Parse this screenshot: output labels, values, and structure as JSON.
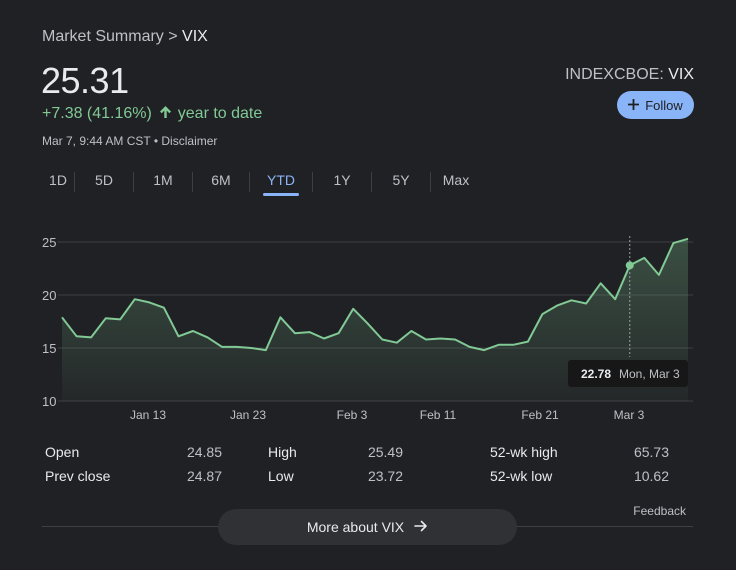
{
  "breadcrumb": {
    "parent": "Market Summary",
    "separator": ">",
    "current": "VIX"
  },
  "quote": {
    "price": "25.31",
    "change": "+7.38 (41.16%)",
    "period": "year to date",
    "timestamp": "Mar 7, 9:44 AM CST",
    "disclaimer": "Disclaimer",
    "exchange": "INDEXCBOE",
    "symbol": "VIX",
    "follow_label": "Follow"
  },
  "colors": {
    "accent": "#8ab4f8",
    "positive": "#81c995",
    "background": "#202124"
  },
  "tabs": [
    {
      "label": "1D",
      "active": false
    },
    {
      "label": "5D",
      "active": false
    },
    {
      "label": "1M",
      "active": false
    },
    {
      "label": "6M",
      "active": false
    },
    {
      "label": "YTD",
      "active": true
    },
    {
      "label": "1Y",
      "active": false
    },
    {
      "label": "5Y",
      "active": false
    },
    {
      "label": "Max",
      "active": false
    }
  ],
  "chart_data": {
    "type": "area",
    "y_ticks": [
      10,
      15,
      20,
      25
    ],
    "x_ticks": [
      "Jan 13",
      "Jan 23",
      "Feb 3",
      "Feb 11",
      "Feb 21",
      "Mar 3"
    ],
    "ylim": [
      10,
      25.5
    ],
    "grid": true,
    "series": [
      {
        "values": [
          17.9,
          16.1,
          16.0,
          17.8,
          17.7,
          19.6,
          19.3,
          18.8,
          16.1,
          16.6,
          16.0,
          15.1,
          15.1,
          15.0,
          14.8,
          17.9,
          16.4,
          16.5,
          15.9,
          16.4,
          18.7,
          17.3,
          15.8,
          15.5,
          16.6,
          15.8,
          15.9,
          15.8,
          15.1,
          14.8,
          15.3,
          15.3,
          15.6,
          18.2,
          19.0,
          19.5,
          19.2,
          21.1,
          19.6,
          22.8,
          23.5,
          21.9,
          24.9,
          25.3
        ]
      }
    ],
    "tooltip": {
      "value": "22.78",
      "label": "Mon, Mar 3",
      "index": 39
    }
  },
  "stats": [
    {
      "label": "Open",
      "value": "24.85"
    },
    {
      "label": "High",
      "value": "25.49"
    },
    {
      "label": "52-wk high",
      "value": "65.73"
    },
    {
      "label": "Prev close",
      "value": "24.87"
    },
    {
      "label": "Low",
      "value": "23.72"
    },
    {
      "label": "52-wk low",
      "value": "10.62"
    }
  ],
  "feedback_label": "Feedback",
  "more_button": {
    "label": "More about VIX",
    "icon": "arrow-right-icon"
  }
}
